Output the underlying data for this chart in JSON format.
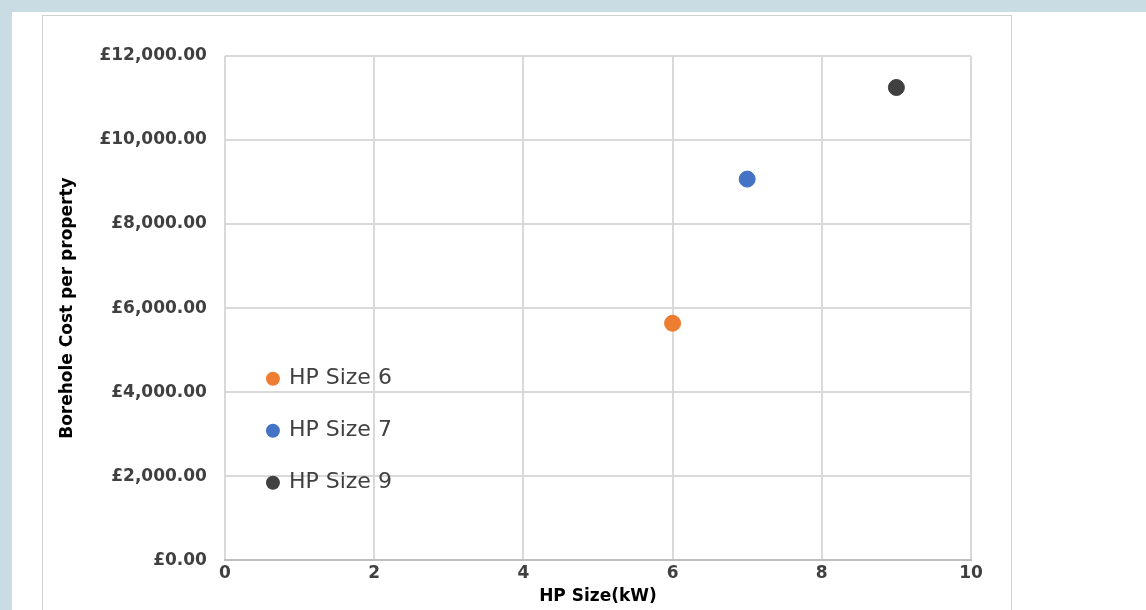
{
  "chart_data": {
    "type": "scatter",
    "xlabel": "HP Size(kW)",
    "ylabel": "Borehole Cost per property",
    "xlim": [
      0,
      10
    ],
    "xticks": [
      0,
      2,
      4,
      6,
      8,
      10
    ],
    "ylim": [
      0,
      12000
    ],
    "yticks": [
      {
        "value": 0,
        "label": "£0.00"
      },
      {
        "value": 2000,
        "label": "£2,000.00"
      },
      {
        "value": 4000,
        "label": "£4,000.00"
      },
      {
        "value": 6000,
        "label": "£6,000.00"
      },
      {
        "value": 8000,
        "label": "£8,000.00"
      },
      {
        "value": 10000,
        "label": "£10,000.00"
      },
      {
        "value": 12000,
        "label": "£12,000.00"
      }
    ],
    "grid": true,
    "legend": "left",
    "marker": "circle",
    "series": [
      {
        "name": "HP Size 6",
        "color": "#ed7d31",
        "x": [
          6
        ],
        "values": [
          5640
        ]
      },
      {
        "name": "HP Size 7",
        "color": "#4472c4",
        "x": [
          7
        ],
        "values": [
          9070
        ]
      },
      {
        "name": "HP Size 9",
        "color": "#404040",
        "x": [
          9
        ],
        "values": [
          11250
        ]
      }
    ]
  }
}
